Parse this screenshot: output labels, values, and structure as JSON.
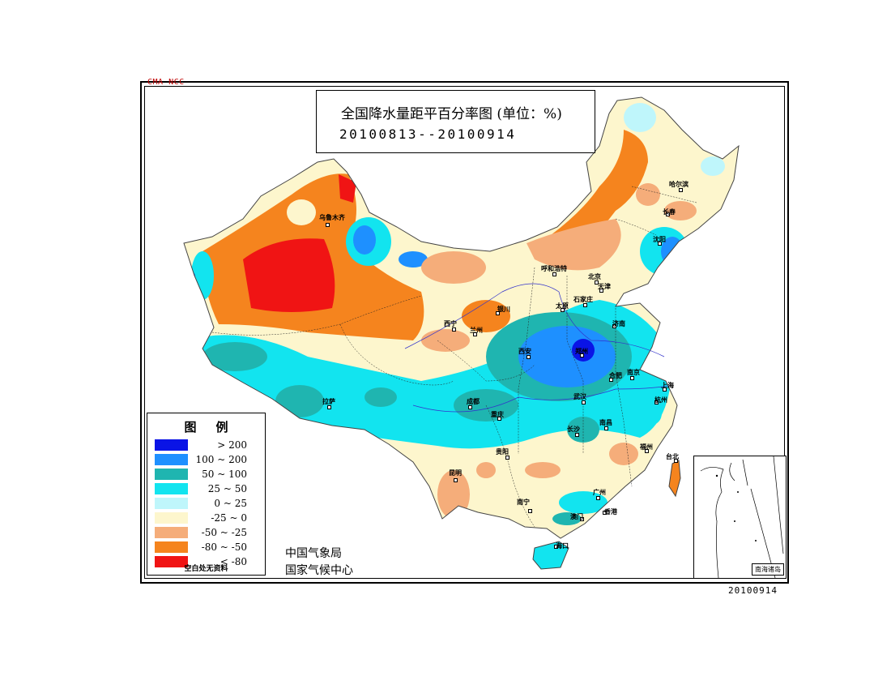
{
  "watermark": "CMA NCC",
  "title": {
    "main": "全国降水量距平百分率图 (单位：%)",
    "date_range": "20100813--20100914"
  },
  "legend": {
    "title": "图例",
    "items": [
      {
        "label": "> 200",
        "color": "#0a14e6"
      },
      {
        "label": "100 ~ 200",
        "color": "#1e90ff"
      },
      {
        "label": "50 ~ 100",
        "color": "#1fb5b0"
      },
      {
        "label": "25 ~ 50",
        "color": "#12e4ef"
      },
      {
        "label": "0 ~ 25",
        "color": "#bff6fb"
      },
      {
        "label": "-25 ~ 0",
        "color": "#fdf6cd"
      },
      {
        "label": "-50 ~ -25",
        "color": "#f5ad7a"
      },
      {
        "label": "-80 ~ -50",
        "color": "#f5841e"
      },
      {
        "label": "< -80",
        "color": "#f01414"
      }
    ],
    "note": "空白处无资料"
  },
  "agency": {
    "line1": "中国气象局",
    "line2": "国家气候中心"
  },
  "south_china_sea_label": "南海诸岛",
  "issue_date": "20100914",
  "cities": [
    {
      "name": "乌鲁木齐"
    },
    {
      "name": "哈尔滨"
    },
    {
      "name": "长春"
    },
    {
      "name": "沈阳"
    },
    {
      "name": "呼和浩特"
    },
    {
      "name": "北京"
    },
    {
      "name": "天津"
    },
    {
      "name": "石家庄"
    },
    {
      "name": "太原"
    },
    {
      "name": "银川"
    },
    {
      "name": "西宁"
    },
    {
      "name": "兰州"
    },
    {
      "name": "济南"
    },
    {
      "name": "郑州"
    },
    {
      "name": "西安"
    },
    {
      "name": "合肥"
    },
    {
      "name": "南京"
    },
    {
      "name": "上海"
    },
    {
      "name": "武汉"
    },
    {
      "name": "杭州"
    },
    {
      "name": "成都"
    },
    {
      "name": "重庆"
    },
    {
      "name": "拉萨"
    },
    {
      "name": "长沙"
    },
    {
      "name": "南昌"
    },
    {
      "name": "福州"
    },
    {
      "name": "贵阳"
    },
    {
      "name": "昆明"
    },
    {
      "name": "台北"
    },
    {
      "name": "南宁"
    },
    {
      "name": "广州"
    },
    {
      "name": "澳门"
    },
    {
      "name": "香港"
    },
    {
      "name": "海口"
    }
  ]
}
